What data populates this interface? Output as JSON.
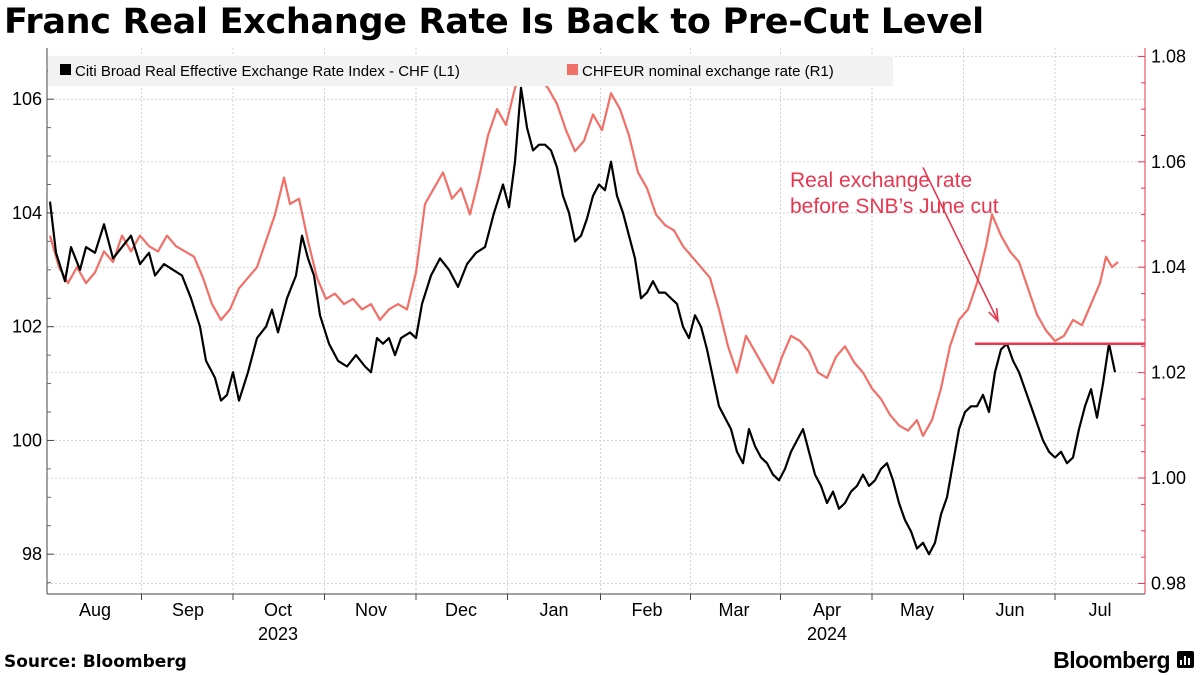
{
  "title": "Franc Real Exchange Rate Is Back to Pre-Cut Level",
  "source": "Source: Bloomberg",
  "brand": "Bloomberg",
  "chart_data": {
    "type": "line",
    "title": "Franc Real Exchange Rate Is Back to Pre-Cut Level",
    "x_range": [
      0,
      356
    ],
    "months": [
      {
        "label": "Aug",
        "day": 15
      },
      {
        "label": "Sep",
        "day": 46
      },
      {
        "label": "Oct",
        "day": 76
      },
      {
        "label": "Nov",
        "day": 107
      },
      {
        "label": "Dec",
        "day": 137
      },
      {
        "label": "Jan",
        "day": 168
      },
      {
        "label": "Feb",
        "day": 199
      },
      {
        "label": "Mar",
        "day": 228
      },
      {
        "label": "Apr",
        "day": 259
      },
      {
        "label": "May",
        "day": 289
      },
      {
        "label": "Jun",
        "day": 320
      },
      {
        "label": "Jul",
        "day": 350
      }
    ],
    "years": [
      {
        "label": "2023",
        "day": 76
      },
      {
        "label": "2024",
        "day": 259
      }
    ],
    "y_left": {
      "range": [
        97.3,
        106.9
      ],
      "ticks": [
        98,
        100,
        102,
        104,
        106
      ]
    },
    "y_right": {
      "range": [
        0.978,
        1.0816
      ],
      "ticks": [
        0.98,
        1.0,
        1.02,
        1.04,
        1.06,
        1.08
      ],
      "tick_labels": [
        "0.98",
        "1.00",
        "1.02",
        "1.04",
        "1.06",
        "1.08"
      ]
    },
    "series": [
      {
        "name": "Citi Broad Real Effective Exchange Rate Index - CHF (L1)",
        "axis": "left",
        "color": "#000000",
        "points": [
          [
            0,
            104.2
          ],
          [
            2,
            103.3
          ],
          [
            5,
            102.8
          ],
          [
            7,
            103.4
          ],
          [
            10,
            103.0
          ],
          [
            12,
            103.4
          ],
          [
            15,
            103.3
          ],
          [
            18,
            103.8
          ],
          [
            21,
            103.2
          ],
          [
            24,
            103.4
          ],
          [
            27,
            103.6
          ],
          [
            30,
            103.1
          ],
          [
            33,
            103.3
          ],
          [
            35,
            102.9
          ],
          [
            38,
            103.1
          ],
          [
            41,
            103.0
          ],
          [
            44,
            102.9
          ],
          [
            47,
            102.5
          ],
          [
            50,
            102.0
          ],
          [
            52,
            101.4
          ],
          [
            55,
            101.1
          ],
          [
            57,
            100.7
          ],
          [
            59,
            100.8
          ],
          [
            61,
            101.2
          ],
          [
            63,
            100.7
          ],
          [
            66,
            101.2
          ],
          [
            69,
            101.8
          ],
          [
            72,
            102.0
          ],
          [
            74,
            102.3
          ],
          [
            76,
            101.9
          ],
          [
            79,
            102.5
          ],
          [
            82,
            102.9
          ],
          [
            84,
            103.6
          ],
          [
            86,
            103.2
          ],
          [
            88,
            102.9
          ],
          [
            90,
            102.2
          ],
          [
            93,
            101.7
          ],
          [
            96,
            101.4
          ],
          [
            99,
            101.3
          ],
          [
            102,
            101.5
          ],
          [
            105,
            101.3
          ],
          [
            107,
            101.2
          ],
          [
            109,
            101.8
          ],
          [
            111,
            101.7
          ],
          [
            113,
            101.8
          ],
          [
            115,
            101.5
          ],
          [
            117,
            101.8
          ],
          [
            120,
            101.9
          ],
          [
            122,
            101.8
          ],
          [
            124,
            102.4
          ],
          [
            127,
            102.9
          ],
          [
            130,
            103.2
          ],
          [
            133,
            103.0
          ],
          [
            136,
            102.7
          ],
          [
            139,
            103.1
          ],
          [
            142,
            103.3
          ],
          [
            145,
            103.4
          ],
          [
            148,
            104.0
          ],
          [
            151,
            104.5
          ],
          [
            153,
            104.1
          ],
          [
            155,
            104.9
          ],
          [
            157,
            106.2
          ],
          [
            159,
            105.5
          ],
          [
            161,
            105.1
          ],
          [
            163,
            105.2
          ],
          [
            165,
            105.2
          ],
          [
            167,
            105.1
          ],
          [
            169,
            104.8
          ],
          [
            171,
            104.3
          ],
          [
            173,
            104.0
          ],
          [
            175,
            103.5
          ],
          [
            177,
            103.6
          ],
          [
            179,
            103.9
          ],
          [
            181,
            104.3
          ],
          [
            183,
            104.5
          ],
          [
            185,
            104.4
          ],
          [
            187,
            104.9
          ],
          [
            189,
            104.3
          ],
          [
            191,
            104.0
          ],
          [
            193,
            103.6
          ],
          [
            195,
            103.2
          ],
          [
            197,
            102.5
          ],
          [
            199,
            102.6
          ],
          [
            201,
            102.8
          ],
          [
            203,
            102.6
          ],
          [
            205,
            102.6
          ],
          [
            207,
            102.5
          ],
          [
            209,
            102.4
          ],
          [
            211,
            102.0
          ],
          [
            213,
            101.8
          ],
          [
            215,
            102.2
          ],
          [
            217,
            102.0
          ],
          [
            219,
            101.6
          ],
          [
            221,
            101.1
          ],
          [
            223,
            100.6
          ],
          [
            225,
            100.4
          ],
          [
            227,
            100.2
          ],
          [
            229,
            99.8
          ],
          [
            231,
            99.6
          ],
          [
            233,
            100.2
          ],
          [
            235,
            99.9
          ],
          [
            237,
            99.7
          ],
          [
            239,
            99.6
          ],
          [
            241,
            99.4
          ],
          [
            243,
            99.3
          ],
          [
            245,
            99.5
          ],
          [
            247,
            99.8
          ],
          [
            249,
            100.0
          ],
          [
            251,
            100.2
          ],
          [
            253,
            99.8
          ],
          [
            255,
            99.4
          ],
          [
            257,
            99.2
          ],
          [
            259,
            98.9
          ],
          [
            261,
            99.1
          ],
          [
            263,
            98.8
          ],
          [
            265,
            98.9
          ],
          [
            267,
            99.1
          ],
          [
            269,
            99.2
          ],
          [
            271,
            99.4
          ],
          [
            273,
            99.2
          ],
          [
            275,
            99.3
          ],
          [
            277,
            99.5
          ],
          [
            279,
            99.6
          ],
          [
            281,
            99.3
          ],
          [
            283,
            98.9
          ],
          [
            285,
            98.6
          ],
          [
            287,
            98.4
          ],
          [
            289,
            98.1
          ],
          [
            291,
            98.2
          ],
          [
            293,
            98.0
          ],
          [
            295,
            98.2
          ],
          [
            297,
            98.7
          ],
          [
            299,
            99.0
          ],
          [
            301,
            99.6
          ],
          [
            303,
            100.2
          ],
          [
            305,
            100.5
          ],
          [
            307,
            100.6
          ],
          [
            309,
            100.6
          ],
          [
            311,
            100.8
          ],
          [
            313,
            100.5
          ],
          [
            315,
            101.2
          ],
          [
            317,
            101.6
          ],
          [
            319,
            101.7
          ],
          [
            321,
            101.4
          ],
          [
            323,
            101.2
          ],
          [
            325,
            100.9
          ],
          [
            327,
            100.6
          ],
          [
            329,
            100.3
          ],
          [
            331,
            100.0
          ],
          [
            333,
            99.8
          ],
          [
            335,
            99.7
          ],
          [
            337,
            99.8
          ],
          [
            339,
            99.6
          ],
          [
            341,
            99.7
          ],
          [
            343,
            100.2
          ],
          [
            345,
            100.6
          ],
          [
            347,
            100.9
          ],
          [
            349,
            100.4
          ],
          [
            351,
            101.0
          ],
          [
            353,
            101.7
          ],
          [
            355,
            101.2
          ]
        ]
      },
      {
        "name": "CHFEUR nominal exchange rate (R1)",
        "axis": "right",
        "color": "#f07068",
        "points": [
          [
            0,
            1.046
          ],
          [
            3,
            1.04
          ],
          [
            6,
            1.037
          ],
          [
            9,
            1.04
          ],
          [
            12,
            1.037
          ],
          [
            15,
            1.039
          ],
          [
            18,
            1.043
          ],
          [
            21,
            1.041
          ],
          [
            24,
            1.046
          ],
          [
            27,
            1.043
          ],
          [
            30,
            1.046
          ],
          [
            33,
            1.044
          ],
          [
            36,
            1.043
          ],
          [
            39,
            1.046
          ],
          [
            42,
            1.044
          ],
          [
            45,
            1.043
          ],
          [
            48,
            1.042
          ],
          [
            51,
            1.038
          ],
          [
            54,
            1.033
          ],
          [
            57,
            1.03
          ],
          [
            60,
            1.032
          ],
          [
            63,
            1.036
          ],
          [
            66,
            1.038
          ],
          [
            69,
            1.04
          ],
          [
            72,
            1.045
          ],
          [
            75,
            1.05
          ],
          [
            78,
            1.057
          ],
          [
            80,
            1.052
          ],
          [
            83,
            1.053
          ],
          [
            86,
            1.045
          ],
          [
            89,
            1.038
          ],
          [
            92,
            1.034
          ],
          [
            95,
            1.035
          ],
          [
            98,
            1.033
          ],
          [
            101,
            1.034
          ],
          [
            104,
            1.032
          ],
          [
            107,
            1.033
          ],
          [
            110,
            1.03
          ],
          [
            113,
            1.032
          ],
          [
            116,
            1.033
          ],
          [
            119,
            1.032
          ],
          [
            122,
            1.039
          ],
          [
            125,
            1.052
          ],
          [
            128,
            1.055
          ],
          [
            131,
            1.058
          ],
          [
            134,
            1.053
          ],
          [
            137,
            1.055
          ],
          [
            140,
            1.05
          ],
          [
            143,
            1.057
          ],
          [
            146,
            1.065
          ],
          [
            149,
            1.07
          ],
          [
            152,
            1.067
          ],
          [
            155,
            1.074
          ],
          [
            157,
            1.077
          ],
          [
            160,
            1.075
          ],
          [
            163,
            1.076
          ],
          [
            166,
            1.074
          ],
          [
            169,
            1.071
          ],
          [
            172,
            1.066
          ],
          [
            175,
            1.062
          ],
          [
            178,
            1.064
          ],
          [
            181,
            1.069
          ],
          [
            184,
            1.066
          ],
          [
            187,
            1.073
          ],
          [
            190,
            1.07
          ],
          [
            193,
            1.065
          ],
          [
            196,
            1.058
          ],
          [
            199,
            1.055
          ],
          [
            202,
            1.05
          ],
          [
            205,
            1.048
          ],
          [
            208,
            1.047
          ],
          [
            211,
            1.044
          ],
          [
            214,
            1.042
          ],
          [
            217,
            1.04
          ],
          [
            220,
            1.038
          ],
          [
            223,
            1.032
          ],
          [
            226,
            1.025
          ],
          [
            229,
            1.02
          ],
          [
            232,
            1.027
          ],
          [
            235,
            1.024
          ],
          [
            238,
            1.021
          ],
          [
            241,
            1.018
          ],
          [
            244,
            1.023
          ],
          [
            247,
            1.027
          ],
          [
            250,
            1.026
          ],
          [
            253,
            1.024
          ],
          [
            256,
            1.02
          ],
          [
            259,
            1.019
          ],
          [
            262,
            1.023
          ],
          [
            265,
            1.025
          ],
          [
            268,
            1.022
          ],
          [
            271,
            1.02
          ],
          [
            274,
            1.017
          ],
          [
            277,
            1.015
          ],
          [
            280,
            1.012
          ],
          [
            283,
            1.01
          ],
          [
            286,
            1.009
          ],
          [
            289,
            1.011
          ],
          [
            291,
            1.008
          ],
          [
            294,
            1.011
          ],
          [
            297,
            1.017
          ],
          [
            300,
            1.025
          ],
          [
            303,
            1.03
          ],
          [
            306,
            1.032
          ],
          [
            309,
            1.037
          ],
          [
            312,
            1.044
          ],
          [
            314,
            1.05
          ],
          [
            317,
            1.046
          ],
          [
            320,
            1.043
          ],
          [
            323,
            1.041
          ],
          [
            326,
            1.036
          ],
          [
            329,
            1.031
          ],
          [
            332,
            1.028
          ],
          [
            335,
            1.026
          ],
          [
            338,
            1.027
          ],
          [
            341,
            1.03
          ],
          [
            344,
            1.029
          ],
          [
            347,
            1.033
          ],
          [
            350,
            1.037
          ],
          [
            352,
            1.042
          ],
          [
            354,
            1.04
          ],
          [
            356,
            1.041
          ]
        ]
      }
    ],
    "annotation": {
      "lines": [
        "Real exchange rate",
        "before SNB’s June cut"
      ],
      "reference_level": 101.7,
      "reference_from_day": 309,
      "arrow_from": [
        291,
        104.8
      ],
      "arrow_to": [
        316,
        102.1
      ]
    },
    "legend_position": "top-left",
    "grid": true
  }
}
